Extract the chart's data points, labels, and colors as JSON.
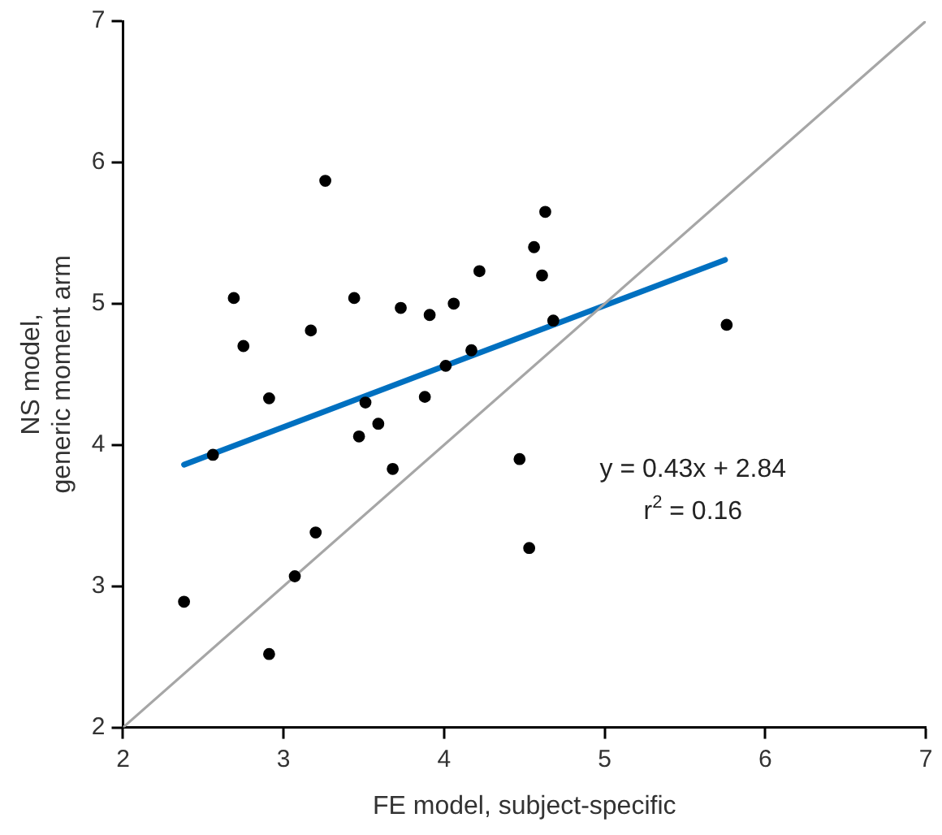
{
  "chart_data": {
    "type": "scatter",
    "xlabel": "FE model, subject-specific",
    "ylabel": "NS model,\ngeneric moment arm",
    "xlim": [
      2,
      7
    ],
    "ylim": [
      2,
      7
    ],
    "xticks": [
      2,
      3,
      4,
      5,
      6,
      7
    ],
    "yticks": [
      2,
      3,
      4,
      5,
      6,
      7
    ],
    "grid": false,
    "legend": false,
    "series": [
      {
        "type": "line",
        "marker": "none",
        "color": "#a6a6a6",
        "x": [
          2,
          7
        ],
        "values": [
          2,
          7
        ]
      },
      {
        "type": "line",
        "marker": "none",
        "color": "#0070c0",
        "x": [
          2.38,
          5.75
        ],
        "values": [
          3.86,
          5.31
        ]
      },
      {
        "marker": "circle",
        "color": "#000000",
        "x": [
          2.38,
          2.56,
          2.69,
          2.75,
          2.91,
          2.91,
          3.07,
          3.17,
          3.2,
          3.26,
          3.44,
          3.47,
          3.51,
          3.59,
          3.68,
          3.73,
          3.88,
          3.91,
          4.01,
          4.06,
          4.17,
          4.22,
          4.47,
          4.53,
          4.56,
          4.61,
          4.63,
          4.68,
          5.76
        ],
        "values": [
          2.89,
          3.93,
          5.04,
          4.7,
          4.33,
          2.52,
          3.07,
          4.81,
          3.38,
          5.87,
          5.04,
          4.06,
          4.3,
          4.15,
          3.83,
          4.97,
          4.34,
          4.92,
          4.56,
          5.0,
          4.67,
          5.23,
          3.9,
          3.27,
          5.4,
          5.2,
          5.65,
          4.88,
          4.85
        ]
      }
    ],
    "annotations": [
      "y = 0.43x + 2.84",
      "r$^{2}$ = 0.16"
    ]
  }
}
